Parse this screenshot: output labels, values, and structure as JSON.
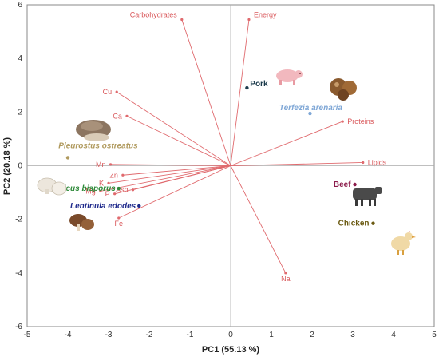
{
  "chart_data": {
    "type": "scatter",
    "subtype": "pca-biplot",
    "xlabel": "PC1 (55.13 %)",
    "ylabel": "PC2 (20.18 %)",
    "xlim": [
      -5,
      5
    ],
    "ylim": [
      -6,
      6
    ],
    "xticks": [
      "-5",
      "-4",
      "-3",
      "-2",
      "-1",
      "0",
      "1",
      "2",
      "3",
      "4",
      "5"
    ],
    "yticks": [
      "-6",
      "-4",
      "-2",
      "0",
      "2",
      "4",
      "6"
    ],
    "grid": false,
    "loading_color": "#e06a6e",
    "loadings": [
      {
        "name": "Carbohydrates",
        "x": -1.2,
        "y": 5.45
      },
      {
        "name": "Energy",
        "x": 0.45,
        "y": 5.45
      },
      {
        "name": "Cu",
        "x": -2.8,
        "y": 2.75
      },
      {
        "name": "Ca",
        "x": -2.55,
        "y": 1.85
      },
      {
        "name": "Proteins",
        "x": 2.75,
        "y": 1.65
      },
      {
        "name": "Lipids",
        "x": 3.25,
        "y": 0.12
      },
      {
        "name": "Mn",
        "x": -2.95,
        "y": 0.05
      },
      {
        "name": "Zn",
        "x": -2.65,
        "y": -0.35
      },
      {
        "name": "K",
        "x": -3.0,
        "y": -0.65
      },
      {
        "name": "Mg",
        "x": -3.2,
        "y": -0.95
      },
      {
        "name": "P",
        "x": -2.85,
        "y": -1.05
      },
      {
        "name": "Ash",
        "x": -2.4,
        "y": -0.9
      },
      {
        "name": "Fe",
        "x": -2.75,
        "y": -1.95
      },
      {
        "name": "Na",
        "x": 1.35,
        "y": -4.0
      }
    ],
    "samples": [
      {
        "name": "Pleurostus ostreatus",
        "x": -4.0,
        "y": 0.3,
        "color": "#b09a5e",
        "italic": true
      },
      {
        "name": "Agaricus bisporus",
        "x": -2.75,
        "y": -0.85,
        "color": "#2f8a3a",
        "italic": true
      },
      {
        "name": "Lentinula edodes",
        "x": -2.25,
        "y": -1.5,
        "color": "#1f2a8c",
        "italic": true
      },
      {
        "name": "Pork",
        "x": 0.4,
        "y": 2.9,
        "color": "#1b3a4b",
        "italic": false
      },
      {
        "name": "Terfezia arenaria",
        "x": 1.95,
        "y": 1.95,
        "color": "#7fa7d6",
        "italic": true
      },
      {
        "name": "Beef",
        "x": 3.05,
        "y": -0.7,
        "color": "#8b1a4a",
        "italic": false
      },
      {
        "name": "Chicken",
        "x": 3.5,
        "y": -2.15,
        "color": "#6b5a12",
        "italic": false
      }
    ]
  },
  "icons": [
    {
      "name": "pig-icon",
      "color": "#f2b8be"
    },
    {
      "name": "truffle-icon",
      "color": "#8a5a2e"
    },
    {
      "name": "oyster-mushroom-icon",
      "color": "#8c7560"
    },
    {
      "name": "button-mushroom-icon",
      "color": "#ece6dc"
    },
    {
      "name": "shiitake-icon",
      "color": "#7a4a2a"
    },
    {
      "name": "cow-icon",
      "color": "#4a4a4a"
    },
    {
      "name": "chicken-icon",
      "color": "#f0d9a6"
    }
  ]
}
